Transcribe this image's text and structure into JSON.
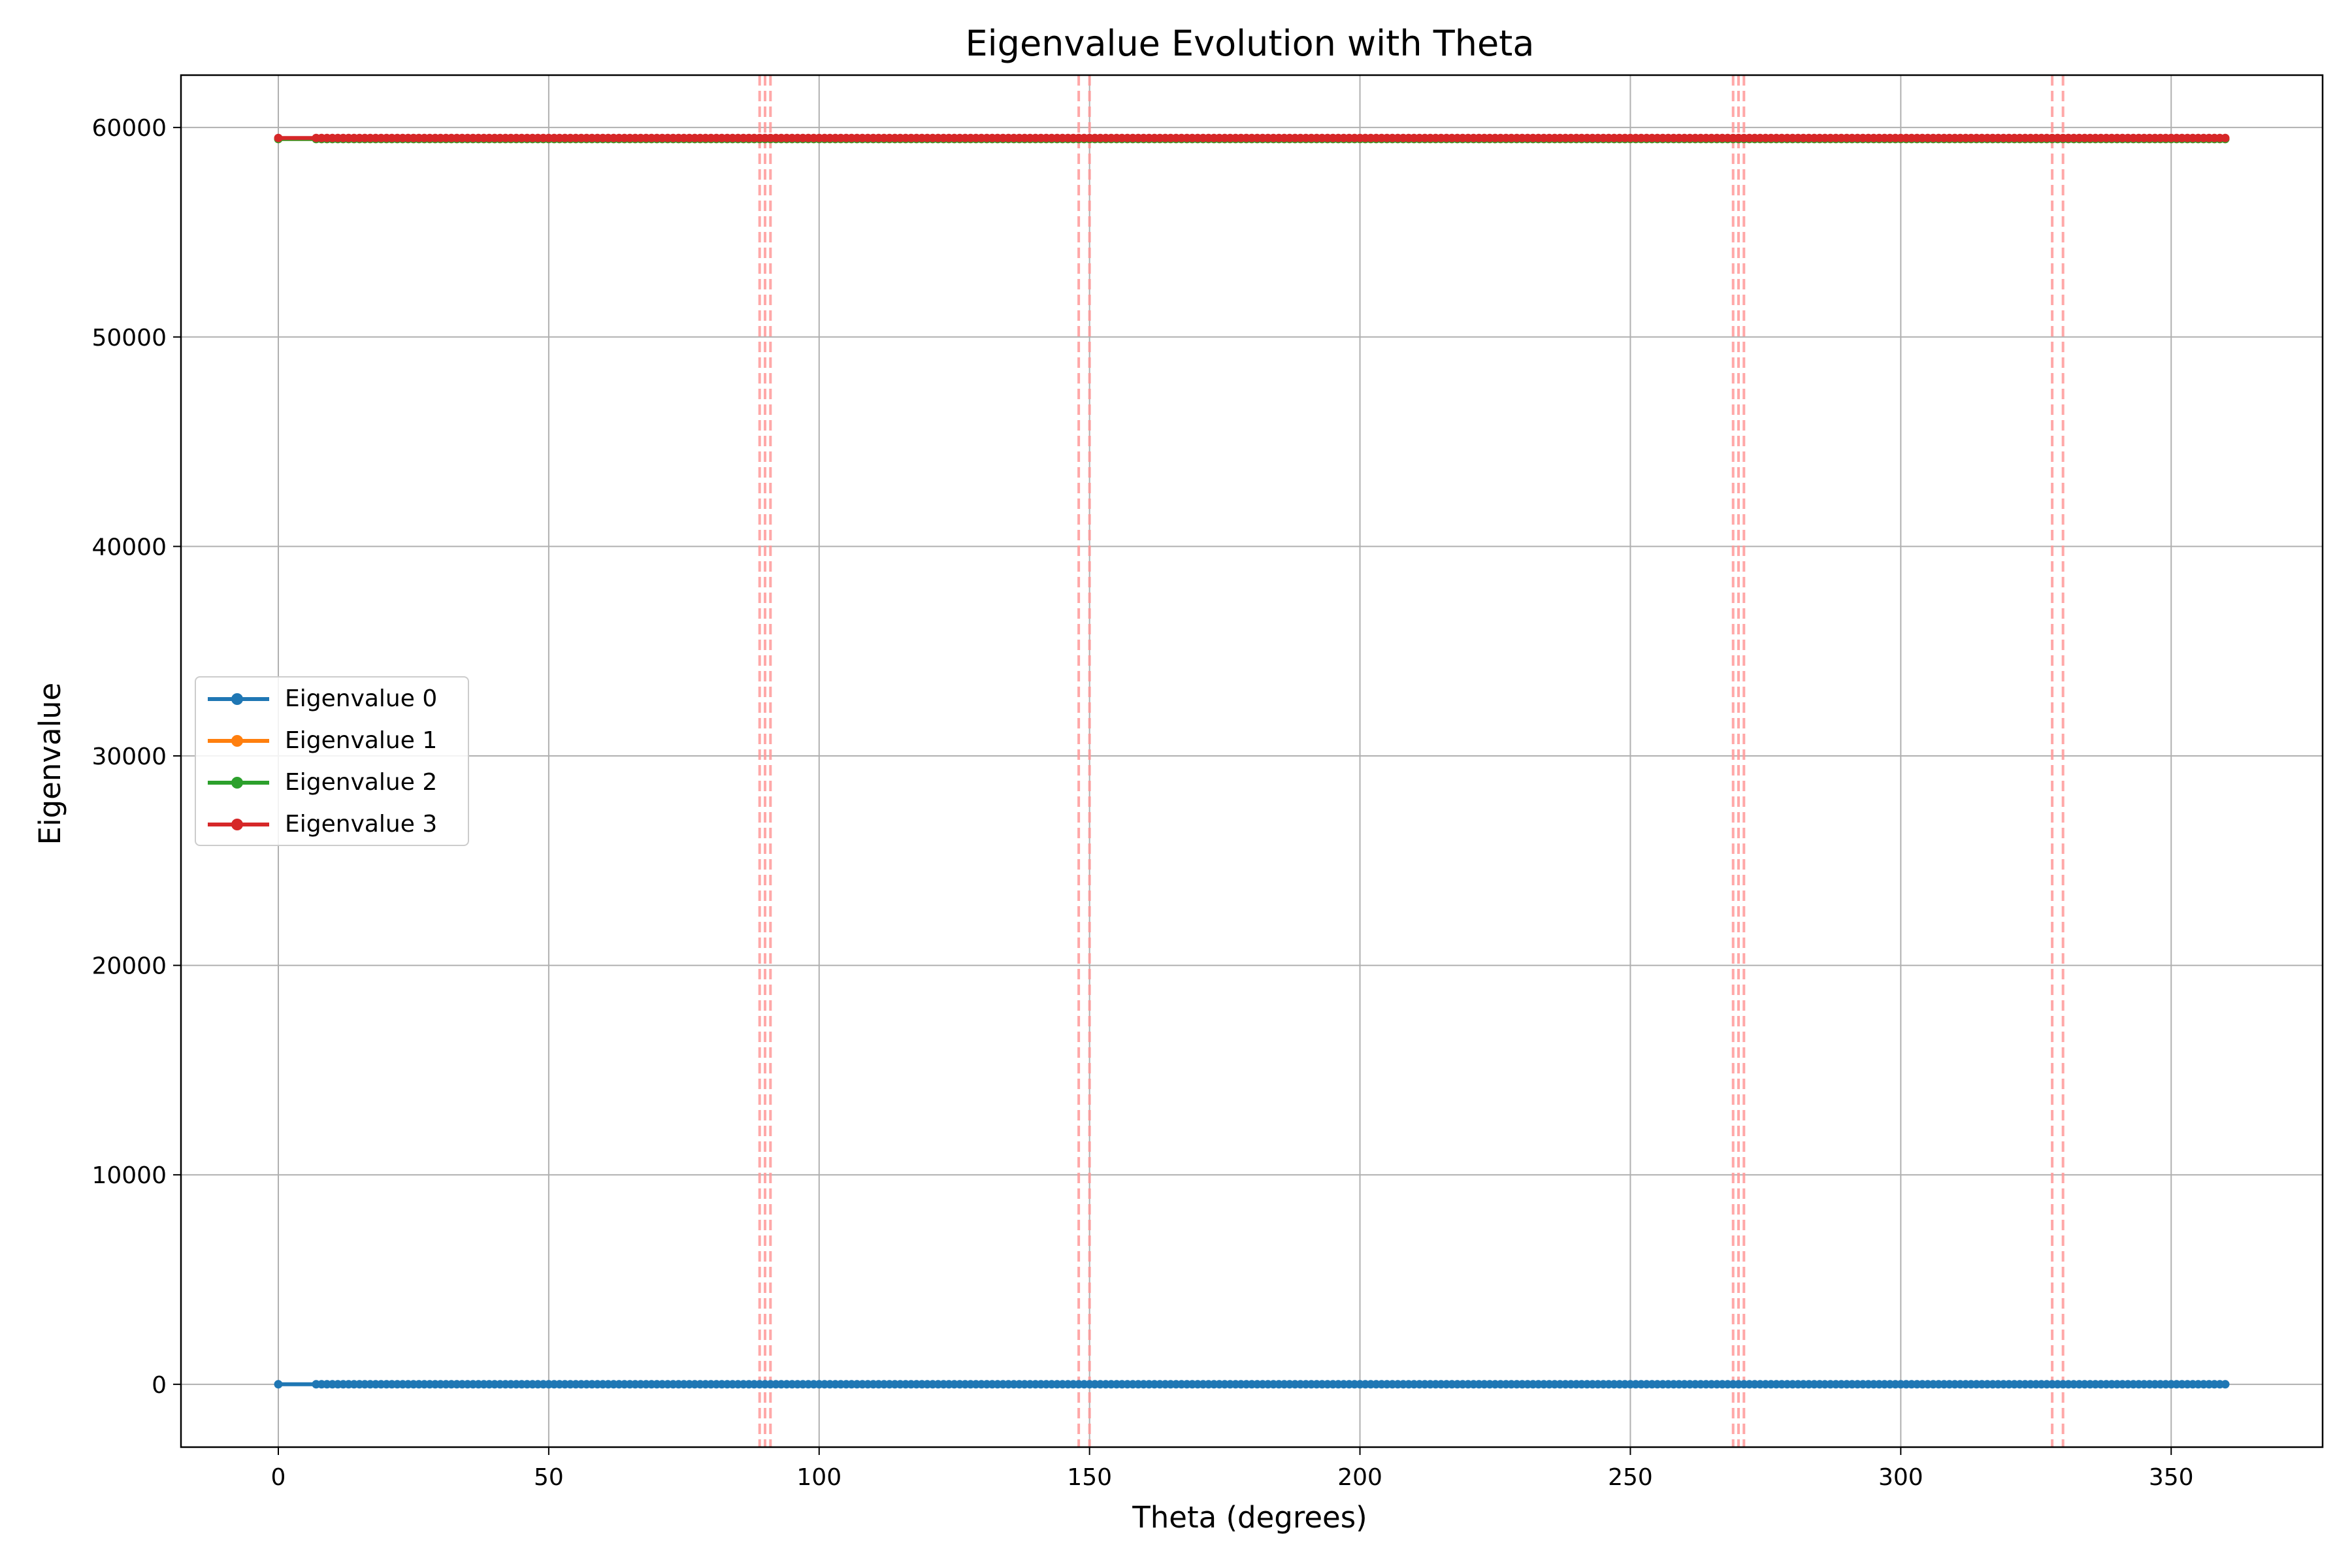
{
  "chart_data": {
    "type": "line",
    "title": "Eigenvalue Evolution with Theta",
    "xlabel": "Theta (degrees)",
    "ylabel": "Eigenvalue",
    "xlim": [
      -18,
      378
    ],
    "ylim": [
      -3000,
      62500
    ],
    "xticks": [
      0,
      50,
      100,
      150,
      200,
      250,
      300,
      350
    ],
    "yticks": [
      0,
      10000,
      20000,
      30000,
      40000,
      50000,
      60000
    ],
    "grid": true,
    "legend_position": "center-left",
    "x": {
      "start": 7,
      "end": 360,
      "step": 1,
      "prepend": [
        0
      ]
    },
    "series": [
      {
        "name": "Eigenvalue 0",
        "color": "#1f77b4",
        "values_constant": 0
      },
      {
        "name": "Eigenvalue 1",
        "color": "#ff7f0e",
        "values_constant": 59450
      },
      {
        "name": "Eigenvalue 2",
        "color": "#2ca02c",
        "values_constant": 59450
      },
      {
        "name": "Eigenvalue 3",
        "color": "#d62728",
        "values_constant": 59500
      }
    ],
    "vlines": [
      89,
      90,
      91,
      148,
      150,
      269,
      270,
      271,
      328,
      330
    ],
    "vline_color": "#ff9999"
  }
}
